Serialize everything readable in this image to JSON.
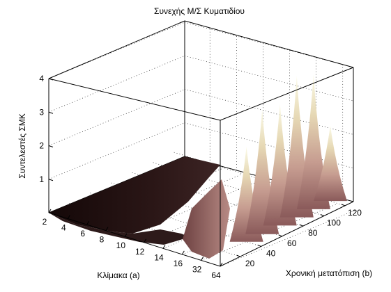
{
  "figure": {
    "title": "Συνεχής Μ/Σ Κυματιδίου"
  },
  "chart_data": {
    "type": "surface",
    "title": "Συνεχής Μ/Σ Κυματιδίου",
    "xlabel": "Χρονική μετατόπιση (b)",
    "ylabel": "Κλίμακα (a)",
    "zlabel": "Συντελεστές ΣΜΚ",
    "x_ticks": [
      "20",
      "40",
      "60",
      "80",
      "100",
      "120"
    ],
    "y_ticks": [
      "2",
      "4",
      "6",
      "8",
      "10",
      "12",
      "14",
      "16",
      "32",
      "64"
    ],
    "z_ticks": [
      "1",
      "2",
      "3",
      "4"
    ],
    "xlim": [
      1,
      128
    ],
    "ylim": [
      2,
      64
    ],
    "zlim": [
      0,
      4
    ],
    "grid": true,
    "colormap": "pink",
    "peaks": [
      {
        "b": 30,
        "a": 64,
        "value": 2.5
      },
      {
        "b": 45,
        "a": 64,
        "value": 3.4
      },
      {
        "b": 62,
        "a": 64,
        "value": 3.3
      },
      {
        "b": 78,
        "a": 64,
        "value": 3.9
      },
      {
        "b": 94,
        "a": 64,
        "value": 3.7
      },
      {
        "b": 110,
        "a": 64,
        "value": 1.9
      }
    ],
    "low_scale_value": 0.1
  }
}
